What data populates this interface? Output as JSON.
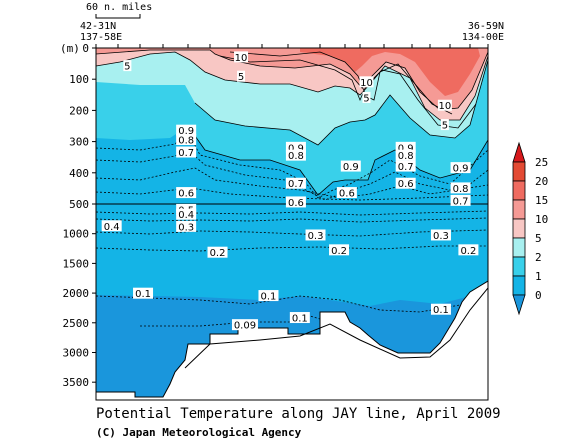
{
  "title": "Potential Temperature along JAY line, April 2009",
  "credit": "(C) Japan Meteorological Agency",
  "chart_data": {
    "type": "heatmap",
    "y_unit_label": "(m)",
    "y_ticks": [
      0,
      100,
      200,
      300,
      400,
      500,
      1000,
      1500,
      2000,
      2500,
      3000,
      3500
    ],
    "ylim": [
      0,
      3800
    ],
    "y_axis_break_at": 500,
    "start_station": {
      "lat": "42-31N",
      "lon": "137-58E"
    },
    "end_station": {
      "lat": "36-59N",
      "lon": "134-00E"
    },
    "scale_bar": "60 n. miles",
    "colorbar": {
      "ticks": [
        "25",
        "20",
        "15",
        "10",
        "5",
        "2",
        "1",
        "0"
      ],
      "colors": [
        "#d7191c",
        "#e34a33",
        "#ef6b60",
        "#f59a95",
        "#f8c7c4",
        "#a8f0f0",
        "#39d0ea",
        "#14b4e6",
        "#1a96dc"
      ]
    },
    "contour_labels": [
      {
        "text": "10",
        "x": 0.37,
        "z": 30
      },
      {
        "text": "5",
        "x": 0.08,
        "z": 58
      },
      {
        "text": "5",
        "x": 0.37,
        "z": 92
      },
      {
        "text": "10",
        "x": 0.69,
        "z": 110
      },
      {
        "text": "5",
        "x": 0.69,
        "z": 160
      },
      {
        "text": "10",
        "x": 0.89,
        "z": 185
      },
      {
        "text": "5",
        "x": 0.89,
        "z": 247
      },
      {
        "text": "0.9",
        "x": 0.23,
        "z": 265
      },
      {
        "text": "0.8",
        "x": 0.23,
        "z": 295
      },
      {
        "text": "0.7",
        "x": 0.23,
        "z": 335
      },
      {
        "text": "0.9",
        "x": 0.51,
        "z": 320
      },
      {
        "text": "0.8",
        "x": 0.51,
        "z": 345
      },
      {
        "text": "0.7",
        "x": 0.51,
        "z": 435
      },
      {
        "text": "0.9",
        "x": 0.65,
        "z": 380
      },
      {
        "text": "0.9",
        "x": 0.79,
        "z": 320
      },
      {
        "text": "0.8",
        "x": 0.79,
        "z": 345
      },
      {
        "text": "0.7",
        "x": 0.79,
        "z": 380
      },
      {
        "text": "0.6",
        "x": 0.79,
        "z": 435
      },
      {
        "text": "0.9",
        "x": 0.93,
        "z": 385
      },
      {
        "text": "0.8",
        "x": 0.93,
        "z": 450
      },
      {
        "text": "0.7",
        "x": 0.93,
        "z": 490
      },
      {
        "text": "0.6",
        "x": 0.23,
        "z": 465
      },
      {
        "text": "0.6",
        "x": 0.64,
        "z": 465
      },
      {
        "text": "0.6",
        "x": 0.51,
        "z": 495
      },
      {
        "text": "0.5",
        "x": 0.23,
        "z": 600
      },
      {
        "text": "0.4",
        "x": 0.23,
        "z": 680
      },
      {
        "text": "0.4",
        "x": 0.04,
        "z": 875
      },
      {
        "text": "0.3",
        "x": 0.23,
        "z": 885
      },
      {
        "text": "0.3",
        "x": 0.56,
        "z": 1030
      },
      {
        "text": "0.3",
        "x": 0.88,
        "z": 1030
      },
      {
        "text": "0.2",
        "x": 0.31,
        "z": 1320
      },
      {
        "text": "0.2",
        "x": 0.62,
        "z": 1280
      },
      {
        "text": "0.2",
        "x": 0.95,
        "z": 1280
      },
      {
        "text": "0.1",
        "x": 0.12,
        "z": 2010
      },
      {
        "text": "0.1",
        "x": 0.44,
        "z": 2050
      },
      {
        "text": "0.1",
        "x": 0.52,
        "z": 2420
      },
      {
        "text": "0.1",
        "x": 0.88,
        "z": 2280
      },
      {
        "text": "0.09",
        "x": 0.38,
        "z": 2540
      }
    ]
  }
}
